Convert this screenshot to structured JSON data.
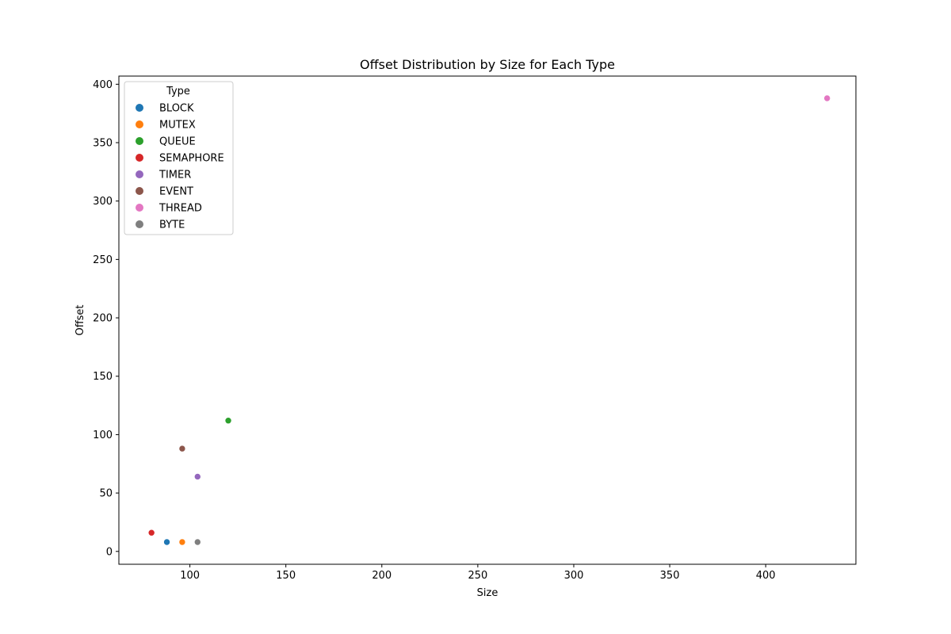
{
  "chart_data": {
    "type": "scatter",
    "title": "Offset Distribution by Size for Each Type",
    "xlabel": "Size",
    "ylabel": "Offset",
    "xlim": [
      63,
      447
    ],
    "ylim": [
      -11,
      407
    ],
    "xticks": [
      100,
      150,
      200,
      250,
      300,
      350,
      400
    ],
    "yticks": [
      0,
      50,
      100,
      150,
      200,
      250,
      300,
      350,
      400
    ],
    "grid": false,
    "legend": {
      "title": "Type",
      "placement": "top-left"
    },
    "series": [
      {
        "name": "BLOCK",
        "color": "#1f77b4",
        "points": [
          {
            "x": 88,
            "y": 8
          }
        ]
      },
      {
        "name": "MUTEX",
        "color": "#ff7f0e",
        "points": [
          {
            "x": 96,
            "y": 8
          }
        ]
      },
      {
        "name": "QUEUE",
        "color": "#2ca02c",
        "points": [
          {
            "x": 120,
            "y": 112
          }
        ]
      },
      {
        "name": "SEMAPHORE",
        "color": "#d62728",
        "points": [
          {
            "x": 80,
            "y": 16
          }
        ]
      },
      {
        "name": "TIMER",
        "color": "#9467bd",
        "points": [
          {
            "x": 104,
            "y": 64
          }
        ]
      },
      {
        "name": "EVENT",
        "color": "#8c564b",
        "points": [
          {
            "x": 96,
            "y": 88
          }
        ]
      },
      {
        "name": "THREAD",
        "color": "#e377c2",
        "points": [
          {
            "x": 432,
            "y": 388
          }
        ]
      },
      {
        "name": "BYTE",
        "color": "#7f7f7f",
        "points": [
          {
            "x": 104,
            "y": 8
          }
        ]
      }
    ]
  }
}
